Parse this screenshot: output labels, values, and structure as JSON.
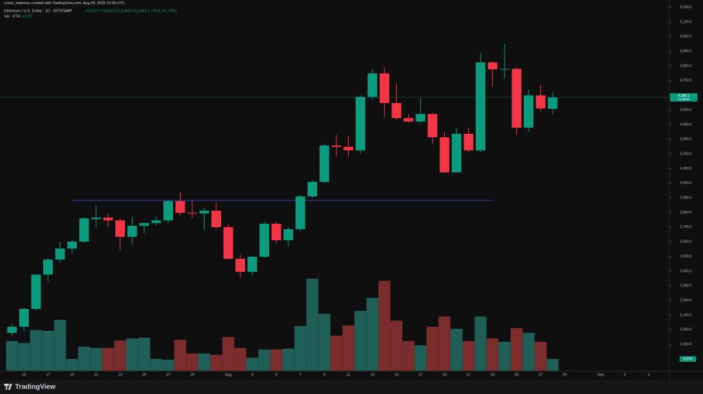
{
  "header": {
    "credit": "conor_maloney created with TradingView.com, Aug 28, 2025 10:09 UTC",
    "brand": "TradingView"
  },
  "chart_data": {
    "type": "candlestick",
    "title": "Ethereum / U.S. Dollar · 1D · BITSTAMP",
    "legend_values": "O4,507.7 H4,623.2 L4,469.4 C4,585.1 +76.8 (+1.70%)",
    "volume_title": "Vol · ETH",
    "volume_legend": "4.57K",
    "up_color": "#0c9b7e",
    "down_color": "#f23645",
    "volume_up_color": "#1f5f57",
    "volume_down_color": "#7b2d2d",
    "level_line": {
      "value": 3882,
      "color": "#2f44c8"
    },
    "last_price": {
      "value": 4585.1,
      "label": "4,585.1",
      "countdown": "11:50:50"
    },
    "categories": [
      null,
      "15",
      null,
      "17",
      null,
      "19",
      null,
      "21",
      null,
      "23",
      null,
      "25",
      null,
      "27",
      null,
      "29",
      null,
      null,
      "Aug",
      null,
      "3",
      null,
      "5",
      null,
      "7",
      null,
      "9",
      null,
      "11",
      null,
      "13",
      null,
      "15",
      null,
      "17",
      null,
      "19",
      null,
      "21",
      null,
      "23",
      null,
      "25",
      null,
      "27",
      null,
      "29",
      null,
      null,
      "Sep",
      null,
      "3",
      null,
      "5"
    ],
    "open": [
      2978,
      3020,
      3142,
      3376,
      3479,
      3554,
      3601,
      3755,
      3765,
      3746,
      3634,
      3709,
      3728,
      3746,
      3878,
      3798,
      3793,
      3812,
      3700,
      3484,
      3395,
      3498,
      3723,
      3611,
      3686,
      3910,
      4009,
      4257,
      4248,
      4224,
      4589,
      4749,
      4547,
      4444,
      4421,
      4472,
      4313,
      4074,
      4337,
      4224,
      4824,
      4777,
      4780,
      4379,
      4599,
      4507.7,
      null,
      null,
      null,
      null,
      null,
      null,
      null,
      null
    ],
    "high": [
      3040,
      3150,
      3380,
      3490,
      3600,
      3615,
      3770,
      3850,
      3790,
      3760,
      3770,
      3730,
      3770,
      3885,
      3940,
      3880,
      3830,
      3870,
      3720,
      3510,
      3505,
      3735,
      3735,
      3700,
      3920,
      4020,
      4270,
      4330,
      4320,
      4600,
      4780,
      4790,
      4680,
      4470,
      4580,
      4480,
      4350,
      4375,
      4380,
      4890,
      4830,
      4950,
      4790,
      4640,
      4670,
      4623.2,
      null,
      null,
      null,
      null,
      null,
      null,
      null,
      null
    ],
    "low": [
      2960,
      2990,
      3130,
      3330,
      3460,
      3520,
      3590,
      3700,
      3700,
      3540,
      3580,
      3660,
      3710,
      3725,
      3780,
      3760,
      3680,
      3690,
      3480,
      3355,
      3370,
      3490,
      3590,
      3570,
      3670,
      3900,
      4000,
      4180,
      4180,
      4200,
      4570,
      4450,
      4430,
      4410,
      4410,
      4270,
      4070,
      4070,
      4210,
      4210,
      4660,
      4710,
      4330,
      4350,
      4490,
      4469.4,
      null,
      null,
      null,
      null,
      null,
      null,
      null,
      null
    ],
    "close": [
      3020,
      3142,
      3376,
      3479,
      3554,
      3601,
      3760,
      3765,
      3746,
      3634,
      3709,
      3728,
      3746,
      3878,
      3798,
      3793,
      3812,
      3700,
      3484,
      3395,
      3498,
      3723,
      3611,
      3686,
      3910,
      4009,
      4257,
      4248,
      4224,
      4589,
      4749,
      4547,
      4444,
      4421,
      4472,
      4313,
      4074,
      4337,
      4224,
      4824,
      4777,
      4780,
      4379,
      4599,
      4510,
      4585.1,
      null,
      null,
      null,
      null,
      null,
      null,
      null,
      null
    ],
    "volume": [
      11.6,
      10.8,
      15.9,
      15.6,
      19.9,
      4.6,
      9.4,
      8.9,
      8.9,
      11.8,
      12.6,
      12.9,
      4.6,
      4.3,
      12.1,
      6.7,
      6.7,
      6.2,
      13.2,
      8.9,
      5.1,
      8.3,
      8.3,
      8.6,
      17.5,
      36.0,
      22.3,
      13.7,
      17.7,
      23.4,
      28.5,
      35.2,
      19.6,
      11.6,
      9.9,
      17.2,
      21.2,
      16.4,
      11.6,
      21.2,
      12.6,
      11.3,
      16.7,
      14.8,
      11.3,
      4.57,
      null,
      null,
      null,
      null,
      null,
      null,
      null,
      null
    ],
    "ylim": [
      2800,
      5250
    ],
    "yticks": [
      {
        "value": 2900,
        "label": "2,900.0"
      },
      {
        "value": 3000,
        "label": "3,000.0"
      },
      {
        "value": 3100,
        "label": "3,100.0"
      },
      {
        "value": 3200,
        "label": "3,200.0"
      },
      {
        "value": 3300,
        "label": "3,300.0"
      },
      {
        "value": 3400,
        "label": "3,400.0"
      },
      {
        "value": 3500,
        "label": "3,500.0"
      },
      {
        "value": 3600,
        "label": "3,600.0"
      },
      {
        "value": 3700,
        "label": "3,700.0"
      },
      {
        "value": 3800,
        "label": "3,800.0"
      },
      {
        "value": 3900,
        "label": "3,900.0"
      },
      {
        "value": 4000,
        "label": "4,000.0"
      },
      {
        "value": 4100,
        "label": "4,100.0"
      },
      {
        "value": 4200,
        "label": "4,200.0"
      },
      {
        "value": 4300,
        "label": "4,300.0"
      },
      {
        "value": 4400,
        "label": "4,400.0"
      },
      {
        "value": 4500,
        "label": "4,500.0"
      },
      {
        "value": 4600,
        "label": "4,600.0"
      },
      {
        "value": 4700,
        "label": "4,700.0"
      },
      {
        "value": 4800,
        "label": "4,800.0"
      },
      {
        "value": 4900,
        "label": "4,900.0"
      },
      {
        "value": 5000,
        "label": "5,000.0"
      },
      {
        "value": 5100,
        "label": "5,100.0"
      },
      {
        "value": 5200,
        "label": "5,200.0"
      }
    ]
  }
}
